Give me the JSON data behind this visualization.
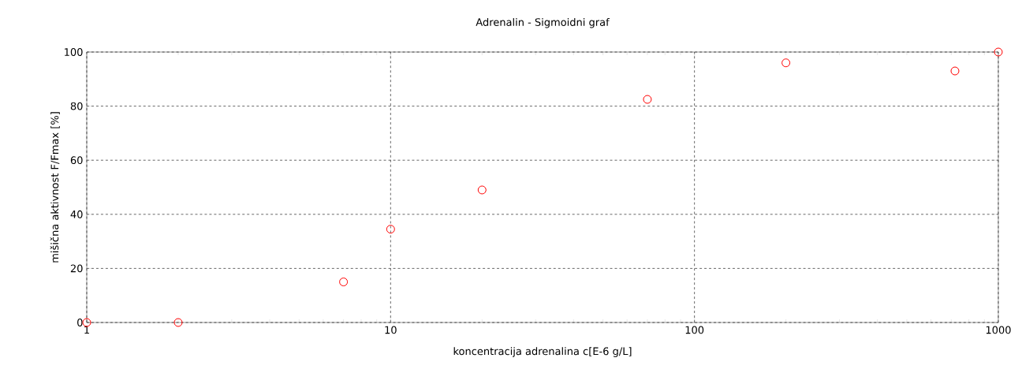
{
  "chart_data": {
    "type": "scatter",
    "title": "Adrenalin - Sigmoidni graf",
    "xlabel": "koncentracija adrenalina c[E-6 g/L]",
    "ylabel": "mišična aktivnost F/Fmax [%]",
    "log": "x",
    "grid": true,
    "marker": "circle",
    "xlim": [
      1,
      1000
    ],
    "xticks": [
      1,
      10,
      100,
      1000
    ],
    "ylim": [
      0,
      100
    ],
    "yticks": [
      0,
      20,
      40,
      60,
      80,
      100
    ],
    "series": [
      {
        "color": "#ff0000",
        "x": [
          1,
          2,
          7,
          10,
          20,
          70,
          200,
          720,
          1000
        ],
        "values": [
          0,
          0,
          15,
          34.5,
          49,
          82.5,
          96,
          93,
          100
        ]
      }
    ]
  }
}
